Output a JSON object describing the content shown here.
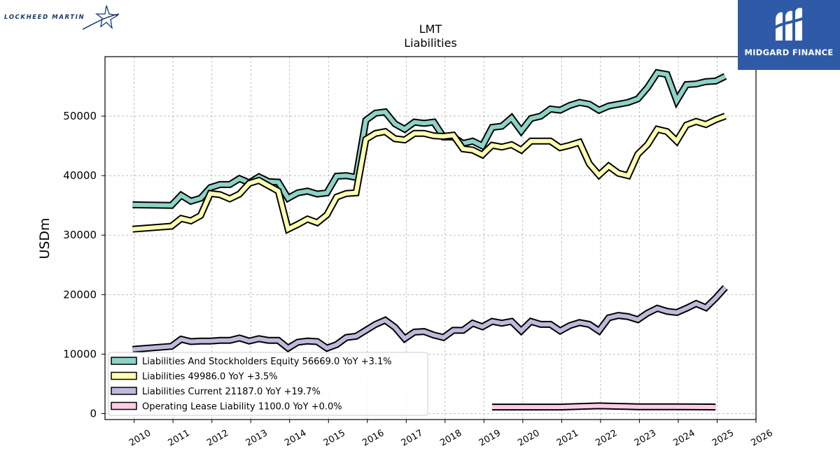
{
  "branding": {
    "company_logo_text": "LOCKHEED MARTIN",
    "partner_logo_text": "MIDGARD FINANCE",
    "partner_color": "#2e5aa8"
  },
  "chart_data": {
    "type": "line",
    "title": "LMT",
    "subtitle": "Liabilities",
    "ylabel": "USDm",
    "xlabel": "",
    "xlim": [
      2009.25,
      2026.0
    ],
    "ylim": [
      -1000,
      60000
    ],
    "x_ticks": [
      "2010",
      "2011",
      "2012",
      "2013",
      "2014",
      "2015",
      "2016",
      "2017",
      "2018",
      "2019",
      "2020",
      "2021",
      "2022",
      "2023",
      "2024",
      "2025",
      "2026"
    ],
    "y_ticks": [
      0,
      10000,
      20000,
      30000,
      40000,
      50000
    ],
    "grid": true,
    "legend_position": "lower-left",
    "series": [
      {
        "name": "Liabilities And Stockholders Equity",
        "legend_label": "Liabilities And Stockholders Equity  56669.0 YoY +3.1%",
        "color": "#8dd3c7",
        "x": [
          2009.96,
          2010.96,
          2011.21,
          2011.46,
          2011.71,
          2011.96,
          2012.21,
          2012.46,
          2012.71,
          2012.96,
          2013.21,
          2013.46,
          2013.71,
          2013.96,
          2014.21,
          2014.46,
          2014.71,
          2014.96,
          2015.21,
          2015.46,
          2015.71,
          2015.96,
          2016.21,
          2016.46,
          2016.71,
          2016.96,
          2017.21,
          2017.46,
          2017.71,
          2017.96,
          2018.21,
          2018.46,
          2018.71,
          2018.96,
          2019.21,
          2019.46,
          2019.71,
          2019.96,
          2020.21,
          2020.46,
          2020.71,
          2020.96,
          2021.21,
          2021.46,
          2021.71,
          2021.96,
          2022.21,
          2022.46,
          2022.71,
          2022.96,
          2023.21,
          2023.46,
          2023.71,
          2023.96,
          2024.21,
          2024.46,
          2024.71,
          2024.96,
          2025.21
        ],
        "y": [
          35100,
          35000,
          36700,
          35700,
          36200,
          38000,
          38500,
          38500,
          39500,
          38800,
          39800,
          39000,
          38900,
          36200,
          37100,
          37400,
          36900,
          37100,
          39900,
          40000,
          39700,
          49300,
          50500,
          50700,
          48700,
          47800,
          49000,
          48800,
          49000,
          46500,
          46500,
          45400,
          45800,
          45000,
          48100,
          48300,
          49700,
          47500,
          49600,
          50000,
          51200,
          51000,
          51800,
          52300,
          52000,
          51000,
          51700,
          52000,
          52300,
          52900,
          54800,
          57300,
          57000,
          52600,
          55300,
          55400,
          55800,
          55900,
          56700
        ]
      },
      {
        "name": "Liabilities",
        "legend_label": "Liabilities  49986.0 YoY +3.5%",
        "color": "#ffffb3",
        "x": [
          2009.96,
          2010.96,
          2011.21,
          2011.46,
          2011.71,
          2011.96,
          2012.21,
          2012.46,
          2012.71,
          2012.96,
          2013.21,
          2013.46,
          2013.71,
          2013.96,
          2014.21,
          2014.46,
          2014.71,
          2014.96,
          2015.21,
          2015.46,
          2015.71,
          2015.96,
          2016.21,
          2016.46,
          2016.71,
          2016.96,
          2017.21,
          2017.46,
          2017.71,
          2017.96,
          2018.21,
          2018.46,
          2018.71,
          2018.96,
          2019.21,
          2019.46,
          2019.71,
          2019.96,
          2020.21,
          2020.46,
          2020.71,
          2020.96,
          2021.21,
          2021.46,
          2021.71,
          2021.96,
          2022.21,
          2022.46,
          2022.71,
          2022.96,
          2023.21,
          2023.46,
          2023.71,
          2023.96,
          2024.21,
          2024.46,
          2024.71,
          2024.96,
          2025.21
        ],
        "y": [
          31000,
          31500,
          32800,
          32400,
          33300,
          37000,
          36800,
          36100,
          36900,
          38700,
          39200,
          38300,
          37400,
          31000,
          31800,
          32700,
          32100,
          33400,
          36400,
          37000,
          37100,
          46100,
          47100,
          47400,
          46200,
          46000,
          47100,
          47100,
          46700,
          46600,
          46800,
          44500,
          44300,
          43500,
          45100,
          44800,
          45200,
          44300,
          45800,
          45800,
          45800,
          44700,
          45100,
          45600,
          42000,
          40100,
          41600,
          40400,
          40000,
          43600,
          45200,
          47800,
          47400,
          45800,
          48500,
          49100,
          48600,
          49400,
          50000
        ]
      },
      {
        "name": "Liabilities Current",
        "legend_label": "Liabilities Current  21187.0 YoY +19.7%",
        "color": "#bebada",
        "x": [
          2009.96,
          2010.96,
          2011.21,
          2011.46,
          2011.71,
          2011.96,
          2012.21,
          2012.46,
          2012.71,
          2012.96,
          2013.21,
          2013.46,
          2013.71,
          2013.96,
          2014.21,
          2014.46,
          2014.71,
          2014.96,
          2015.21,
          2015.46,
          2015.71,
          2015.96,
          2016.21,
          2016.46,
          2016.71,
          2016.96,
          2017.21,
          2017.46,
          2017.71,
          2017.96,
          2018.21,
          2018.46,
          2018.71,
          2018.96,
          2019.21,
          2019.46,
          2019.71,
          2019.96,
          2020.21,
          2020.46,
          2020.71,
          2020.96,
          2021.21,
          2021.46,
          2021.71,
          2021.96,
          2022.21,
          2022.46,
          2022.71,
          2022.96,
          2023.21,
          2023.46,
          2023.71,
          2023.96,
          2024.21,
          2024.46,
          2024.71,
          2024.96,
          2025.21
        ],
        "y": [
          10800,
          11300,
          12500,
          12100,
          12200,
          12200,
          12300,
          12300,
          12700,
          12200,
          12600,
          12300,
          12300,
          11000,
          12000,
          12200,
          12100,
          11000,
          11600,
          12800,
          13000,
          14000,
          15000,
          15700,
          14500,
          12600,
          13700,
          13800,
          13200,
          12800,
          14000,
          14000,
          15200,
          14600,
          15500,
          15200,
          15500,
          13900,
          15500,
          15000,
          15000,
          13900,
          14800,
          15300,
          15000,
          13900,
          16100,
          16500,
          16300,
          15800,
          16900,
          17700,
          17200,
          17000,
          17700,
          18500,
          17800,
          19400,
          21200
        ]
      },
      {
        "name": "Operating Lease Liability",
        "legend_label": "Operating Lease Liability  1100.0 YoY +0.0%",
        "color": "#fccde5",
        "x": [
          2019.21,
          2019.96,
          2020.96,
          2021.96,
          2022.96,
          2023.96,
          2024.96
        ],
        "y": [
          1100,
          1100,
          1100,
          1300,
          1150,
          1150,
          1100
        ]
      }
    ]
  }
}
